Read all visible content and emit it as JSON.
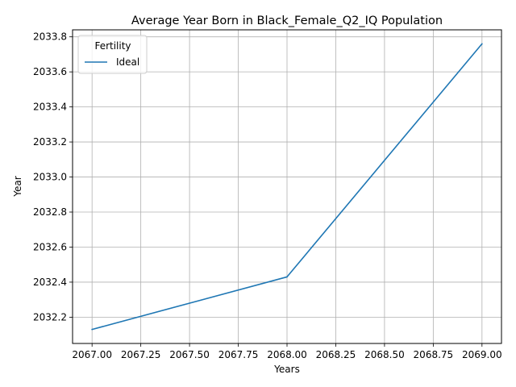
{
  "chart_data": {
    "type": "line",
    "title": "Average Year Born in Black_Female_Q2_IQ Population",
    "xlabel": "Years",
    "ylabel": "Year",
    "xlim": [
      2066.9,
      2069.1
    ],
    "ylim": [
      2032.05,
      2033.84
    ],
    "grid": true,
    "legend": {
      "title": "Fertility",
      "position": "top-left"
    },
    "x_ticks": [
      "2067.00",
      "2067.25",
      "2067.50",
      "2067.75",
      "2068.00",
      "2068.25",
      "2068.50",
      "2068.75",
      "2069.00"
    ],
    "y_ticks": [
      "2032.2",
      "2032.4",
      "2032.6",
      "2032.8",
      "2033.0",
      "2033.2",
      "2033.4",
      "2033.6",
      "2033.8"
    ],
    "series": [
      {
        "name": "Ideal",
        "color": "#1f77b4",
        "x": [
          2067,
          2068,
          2069
        ],
        "y": [
          2032.13,
          2032.43,
          2033.76
        ]
      }
    ]
  }
}
